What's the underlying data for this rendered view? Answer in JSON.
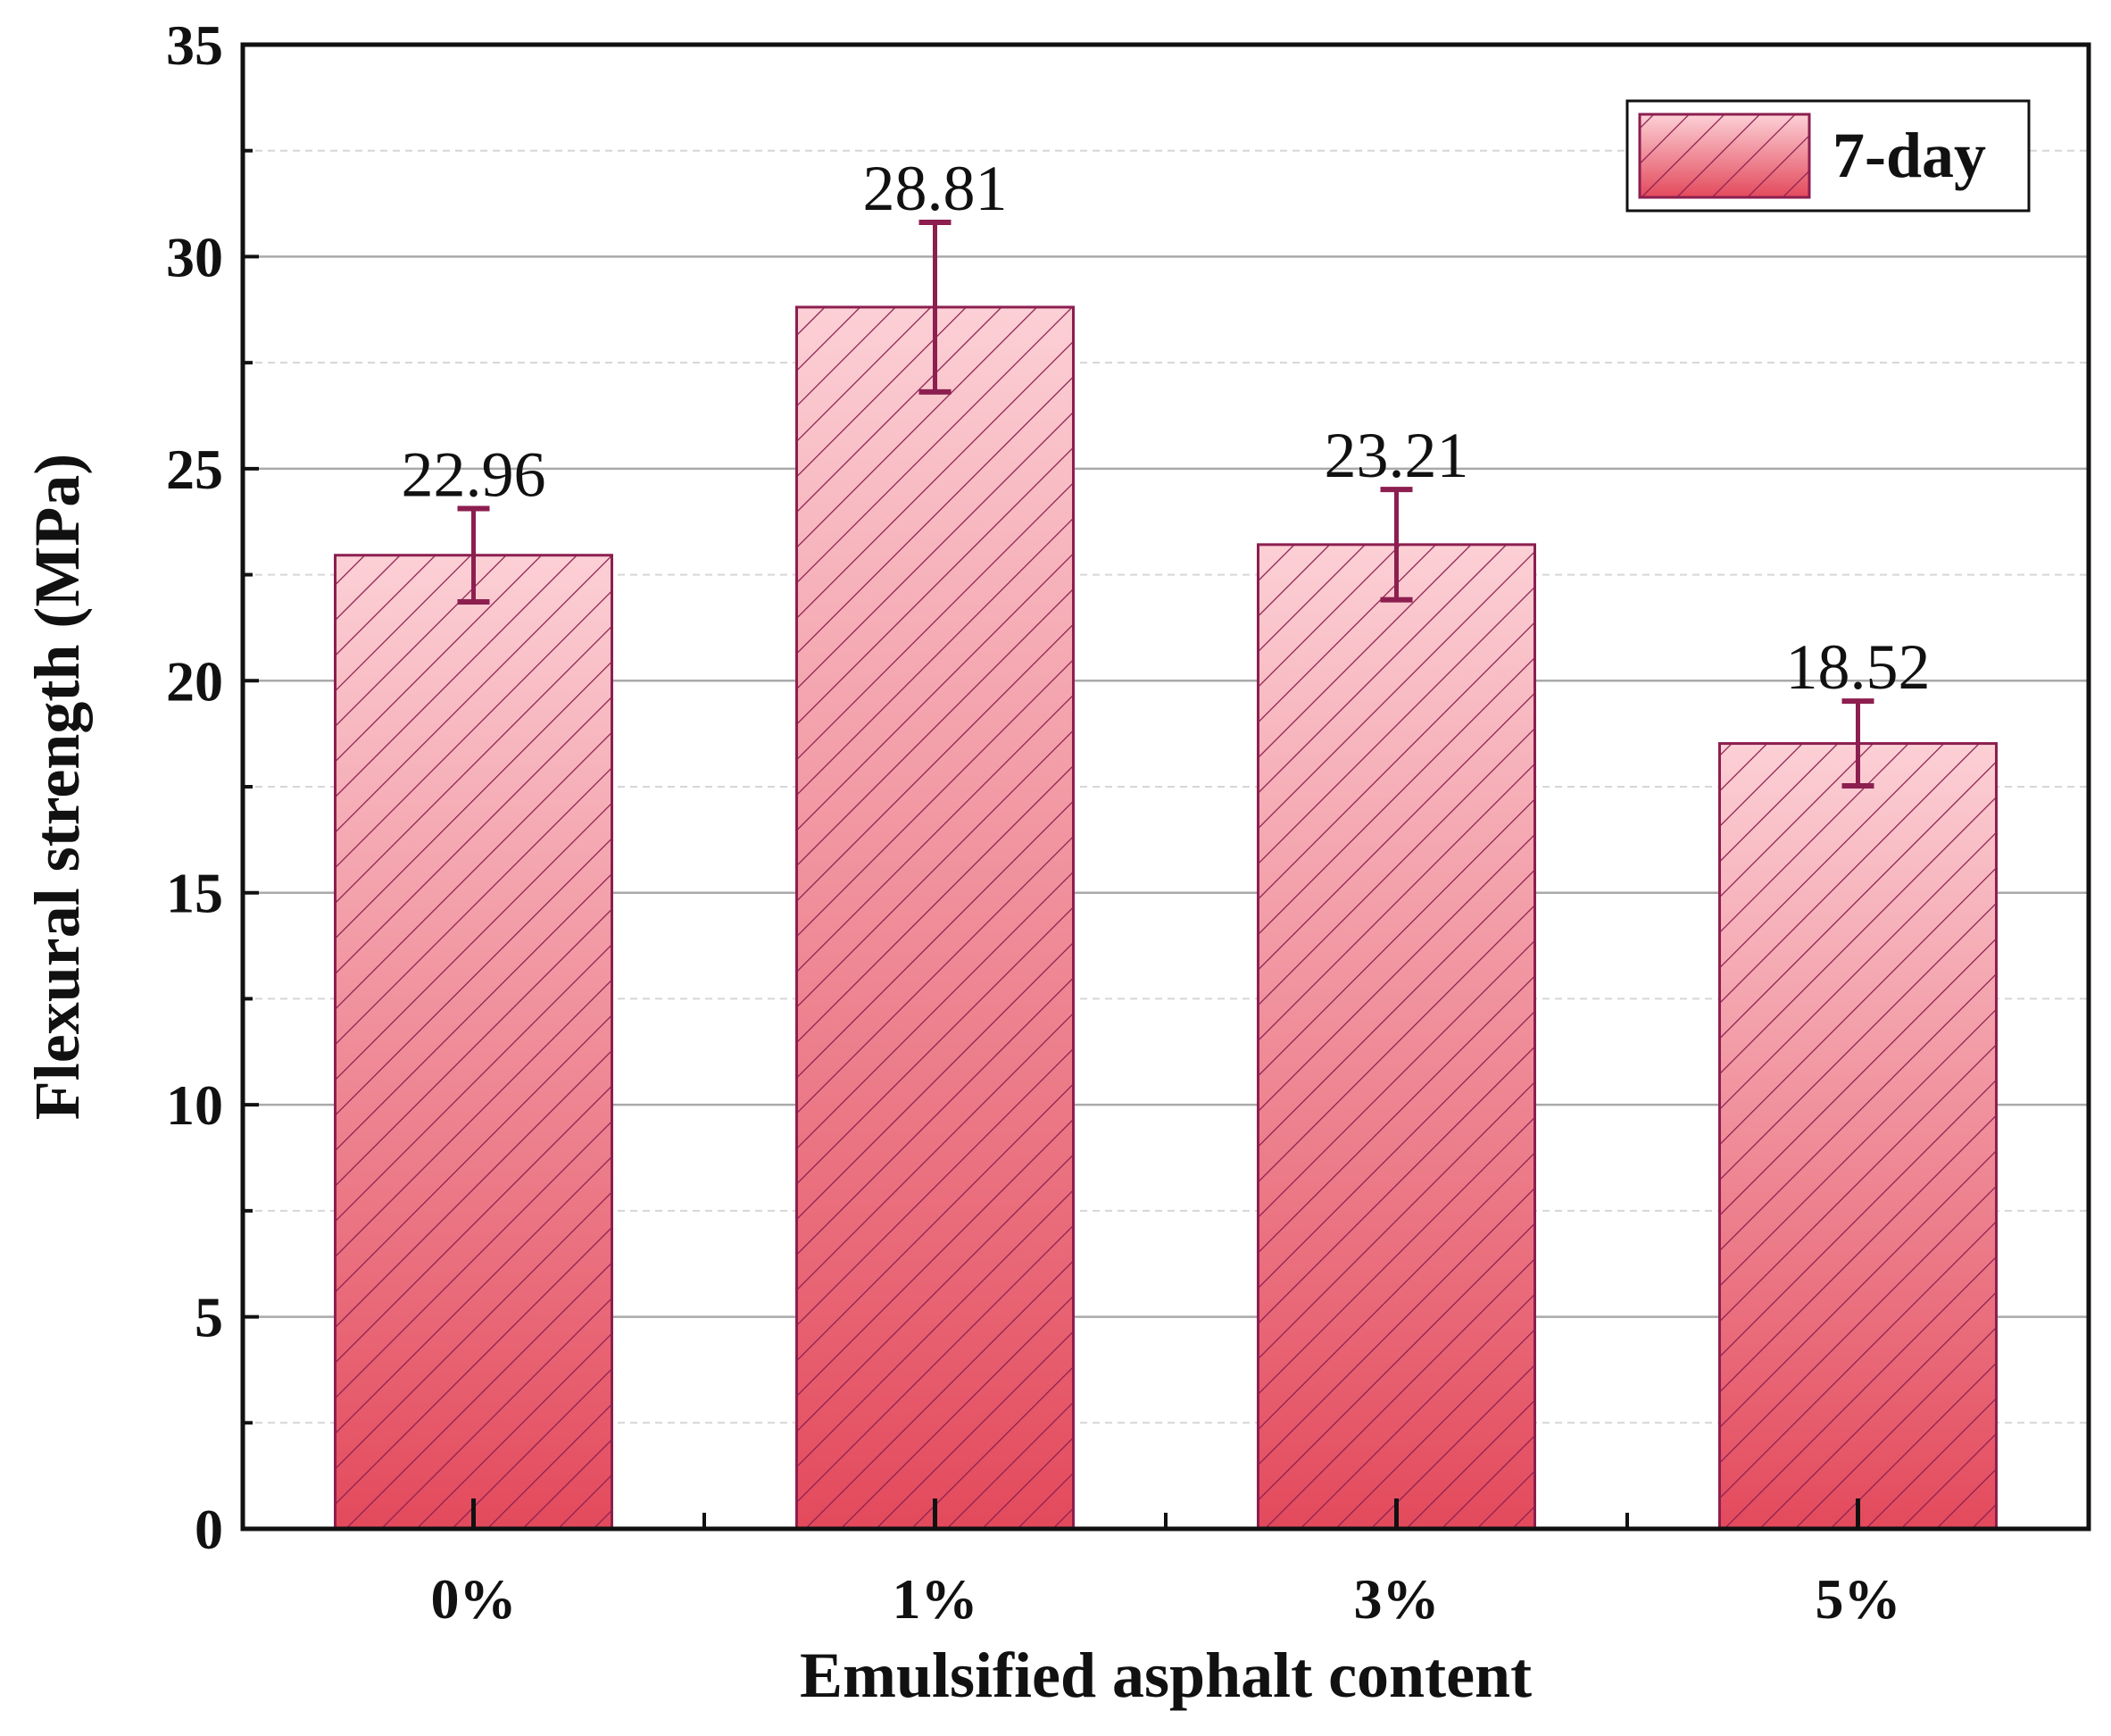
{
  "chart_data": {
    "type": "bar",
    "categories": [
      "0%",
      "1%",
      "3%",
      "5%"
    ],
    "series": [
      {
        "name": "7-day",
        "values": [
          22.96,
          28.81,
          23.21,
          18.52
        ],
        "errors": [
          1.1,
          2.0,
          1.3,
          1.0
        ],
        "labels": [
          "22.96",
          "28.81",
          "23.21",
          "18.52"
        ]
      }
    ],
    "xlabel": "Emulsified asphalt content",
    "ylabel": "Flexural strength (MPa)",
    "ylim": [
      0,
      35
    ],
    "yticks": [
      0,
      5,
      10,
      15,
      20,
      25,
      30,
      35
    ],
    "ytick_labels": [
      "0",
      "5",
      "10",
      "15",
      "20",
      "25",
      "30",
      "35"
    ],
    "grid": true,
    "legend_position": "top-right",
    "colors": {
      "bar_top": "#fcd0d6",
      "bar_bottom": "#e34a5c",
      "bar_edge": "#8c1f4f",
      "hatch": "#8c1f4f",
      "error_bar": "#8c1f4f"
    }
  }
}
